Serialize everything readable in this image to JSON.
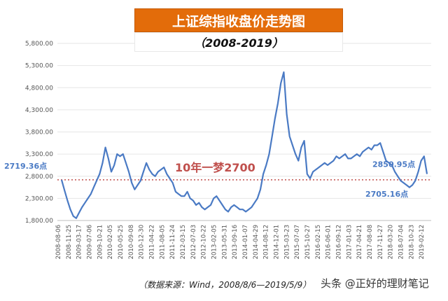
{
  "title": "上证综指收盘价走势图",
  "subtitle": "（2008-2019）",
  "source_note": "（数据来源：Wind，2008/8/6—2019/5/9）",
  "watermark": "头条 @正好的理财笔记",
  "colors": {
    "title_bg": "#e36c0a",
    "line": "#4a7ac4",
    "reference_line": "#c0504d",
    "label_blue": "#4a7ac4",
    "annotation_red": "#c0504d",
    "axis_text": "#555555"
  },
  "chart_data": {
    "type": "line",
    "ylim": [
      1800,
      5800
    ],
    "yticks": [
      1800,
      2300,
      2800,
      3300,
      3800,
      4300,
      4800,
      5300,
      5800
    ],
    "ytick_labels": [
      "1,800.00",
      "2,300.00",
      "2,800.00",
      "3,300.00",
      "3,800.00",
      "4,300.00",
      "4,800.00",
      "5,300.00",
      "5,800.00"
    ],
    "x_tick_labels": [
      "2008-08-06",
      "2008-11-25",
      "2009-03-17",
      "2009-07-06",
      "2009-10-21",
      "2010-02-05",
      "2010-05-25",
      "2010-09-08",
      "2010-12-30",
      "2011-04-22",
      "2011-08-05",
      "2011-11-24",
      "2012-03-15",
      "2012-07-03",
      "2012-10-22",
      "2013-02-05",
      "2013-05-31",
      "2013-09-16",
      "2014-01-07",
      "2014-04-29",
      "2014-08-12",
      "2014-12-01",
      "2015-03-23",
      "2015-07-07",
      "2015-10-27",
      "2016-02-15",
      "2016-06-01",
      "2016-09-12",
      "2017-01-03",
      "2017-04-21",
      "2017-08-08",
      "2017-11-27",
      "2018-03-20",
      "2018-07-04",
      "2018-10-23",
      "2019-02-12"
    ],
    "reference_value": 2719.36,
    "reference_label": "2719.36点",
    "headline_annotation": "10年一梦2700",
    "start_label": "2719.36点",
    "end_value": 2850.95,
    "end_label": "2850.95点",
    "low_label": "2705.16点",
    "low_value": 2705.16,
    "series": [
      {
        "values": [
          2719,
          2480,
          2250,
          2050,
          1900,
          1850,
          1980,
          2100,
          2200,
          2300,
          2400,
          2550,
          2700,
          2850,
          3100,
          3450,
          3200,
          2900,
          3050,
          3300,
          3250,
          3300,
          3100,
          2900,
          2650,
          2500,
          2600,
          2700,
          2900,
          3100,
          2950,
          2850,
          2800,
          2900,
          2950,
          3000,
          2850,
          2750,
          2650,
          2450,
          2400,
          2350,
          2350,
          2450,
          2300,
          2250,
          2150,
          2200,
          2100,
          2050,
          2100,
          2150,
          2300,
          2350,
          2250,
          2150,
          2050,
          2000,
          2100,
          2150,
          2100,
          2050,
          2050,
          2000,
          2050,
          2100,
          2200,
          2300,
          2500,
          2850,
          3050,
          3300,
          3700,
          4100,
          4450,
          4900,
          5150,
          4200,
          3700,
          3500,
          3300,
          3150,
          3450,
          3600,
          2850,
          2750,
          2900,
          2950,
          3000,
          3050,
          3100,
          3050,
          3100,
          3150,
          3250,
          3200,
          3250,
          3300,
          3200,
          3200,
          3250,
          3300,
          3250,
          3350,
          3400,
          3450,
          3400,
          3500,
          3500,
          3550,
          3350,
          3150,
          3100,
          3050,
          2900,
          2800,
          2700,
          2650,
          2600,
          2550,
          2600,
          2700,
          2900,
          3150,
          3250,
          2850
        ]
      }
    ]
  }
}
